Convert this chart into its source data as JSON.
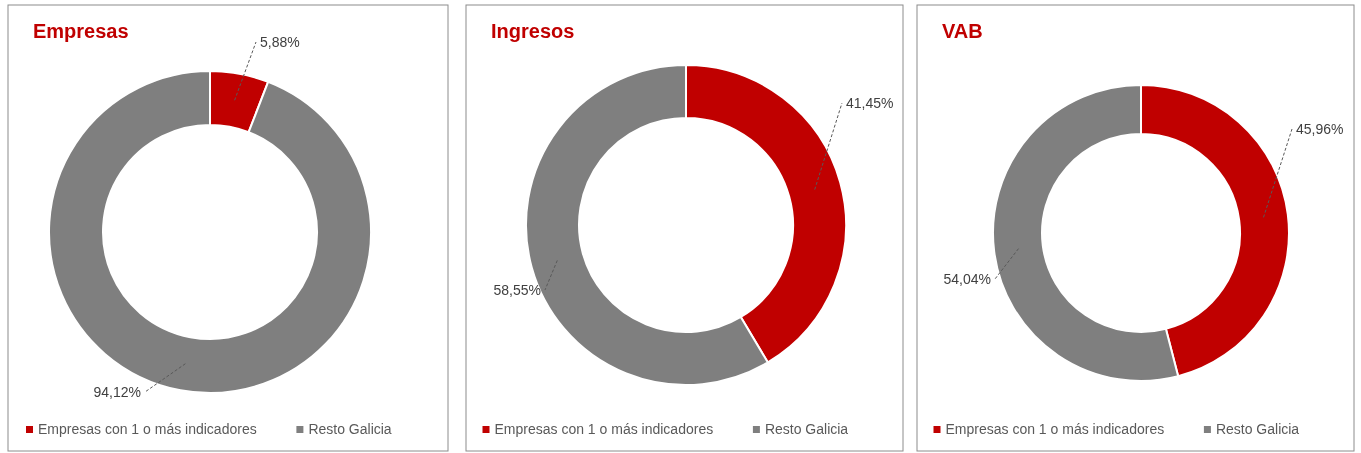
{
  "chart_data": [
    {
      "type": "donut",
      "title": "Empresas",
      "categories": [
        "Empresas con 1 o más indicadores",
        "Resto Galicia"
      ],
      "values": [
        5.88,
        94.12
      ],
      "colors": [
        "#c00000",
        "#7f7f7f"
      ],
      "value_labels": [
        "5,88%",
        "94,12%"
      ],
      "legend": "bottom"
    },
    {
      "type": "donut",
      "title": "Ingresos",
      "categories": [
        "Empresas con 1 o más indicadores",
        "Resto Galicia"
      ],
      "values": [
        41.45,
        58.55
      ],
      "colors": [
        "#c00000",
        "#7f7f7f"
      ],
      "value_labels": [
        "41,45%",
        "58,55%"
      ],
      "legend": "bottom"
    },
    {
      "type": "donut",
      "title": "VAB",
      "categories": [
        "Empresas con 1 o más indicadores",
        "Resto Galicia"
      ],
      "values": [
        45.96,
        54.04
      ],
      "colors": [
        "#c00000",
        "#7f7f7f"
      ],
      "value_labels": [
        "45,96%",
        "54,04%"
      ],
      "legend": "bottom"
    }
  ]
}
